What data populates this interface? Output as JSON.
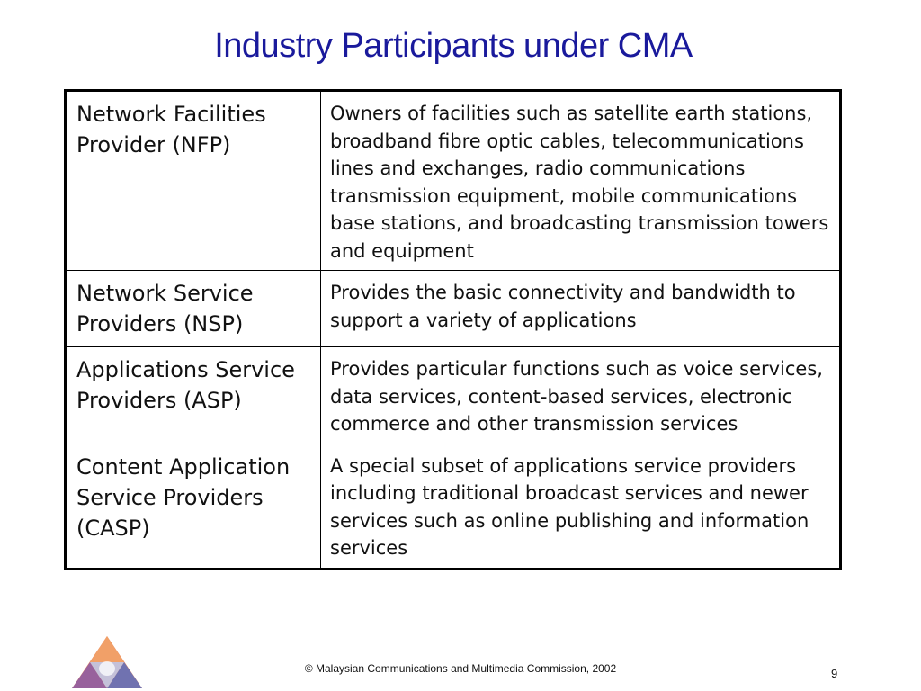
{
  "slide": {
    "title": "Industry Participants under CMA",
    "footer": "© Malaysian Communications and Multimedia Commission, 2002",
    "page_number": "9"
  },
  "table": {
    "rows": [
      {
        "role": "Network Facilities Provider (NFP)",
        "description": "Owners of facilities such as satellite earth stations, broadband fibre optic cables, telecommunications lines and exchanges, radio communications transmission equipment, mobile communications base stations, and broadcasting transmission towers and equipment"
      },
      {
        "role": "Network Service Providers (NSP)",
        "description": "Provides the basic connectivity and bandwidth to support a variety of applications"
      },
      {
        "role": "Applications Service Providers (ASP)",
        "description": "Provides particular functions such as voice services, data services, content-based services, electronic commerce and other transmission services"
      },
      {
        "role": "Content Application Service Providers (CASP)",
        "description": "A special subset of applications service providers including traditional broadcast services and newer services such as online publishing and information services"
      }
    ]
  },
  "colors": {
    "title": "#1a1a9c",
    "logo_orange": "#e8703a",
    "logo_blue": "#5a6fc0",
    "logo_purple": "#8a5aa8"
  },
  "icons": {
    "logo": "mcmc-triangle-logo-icon"
  }
}
